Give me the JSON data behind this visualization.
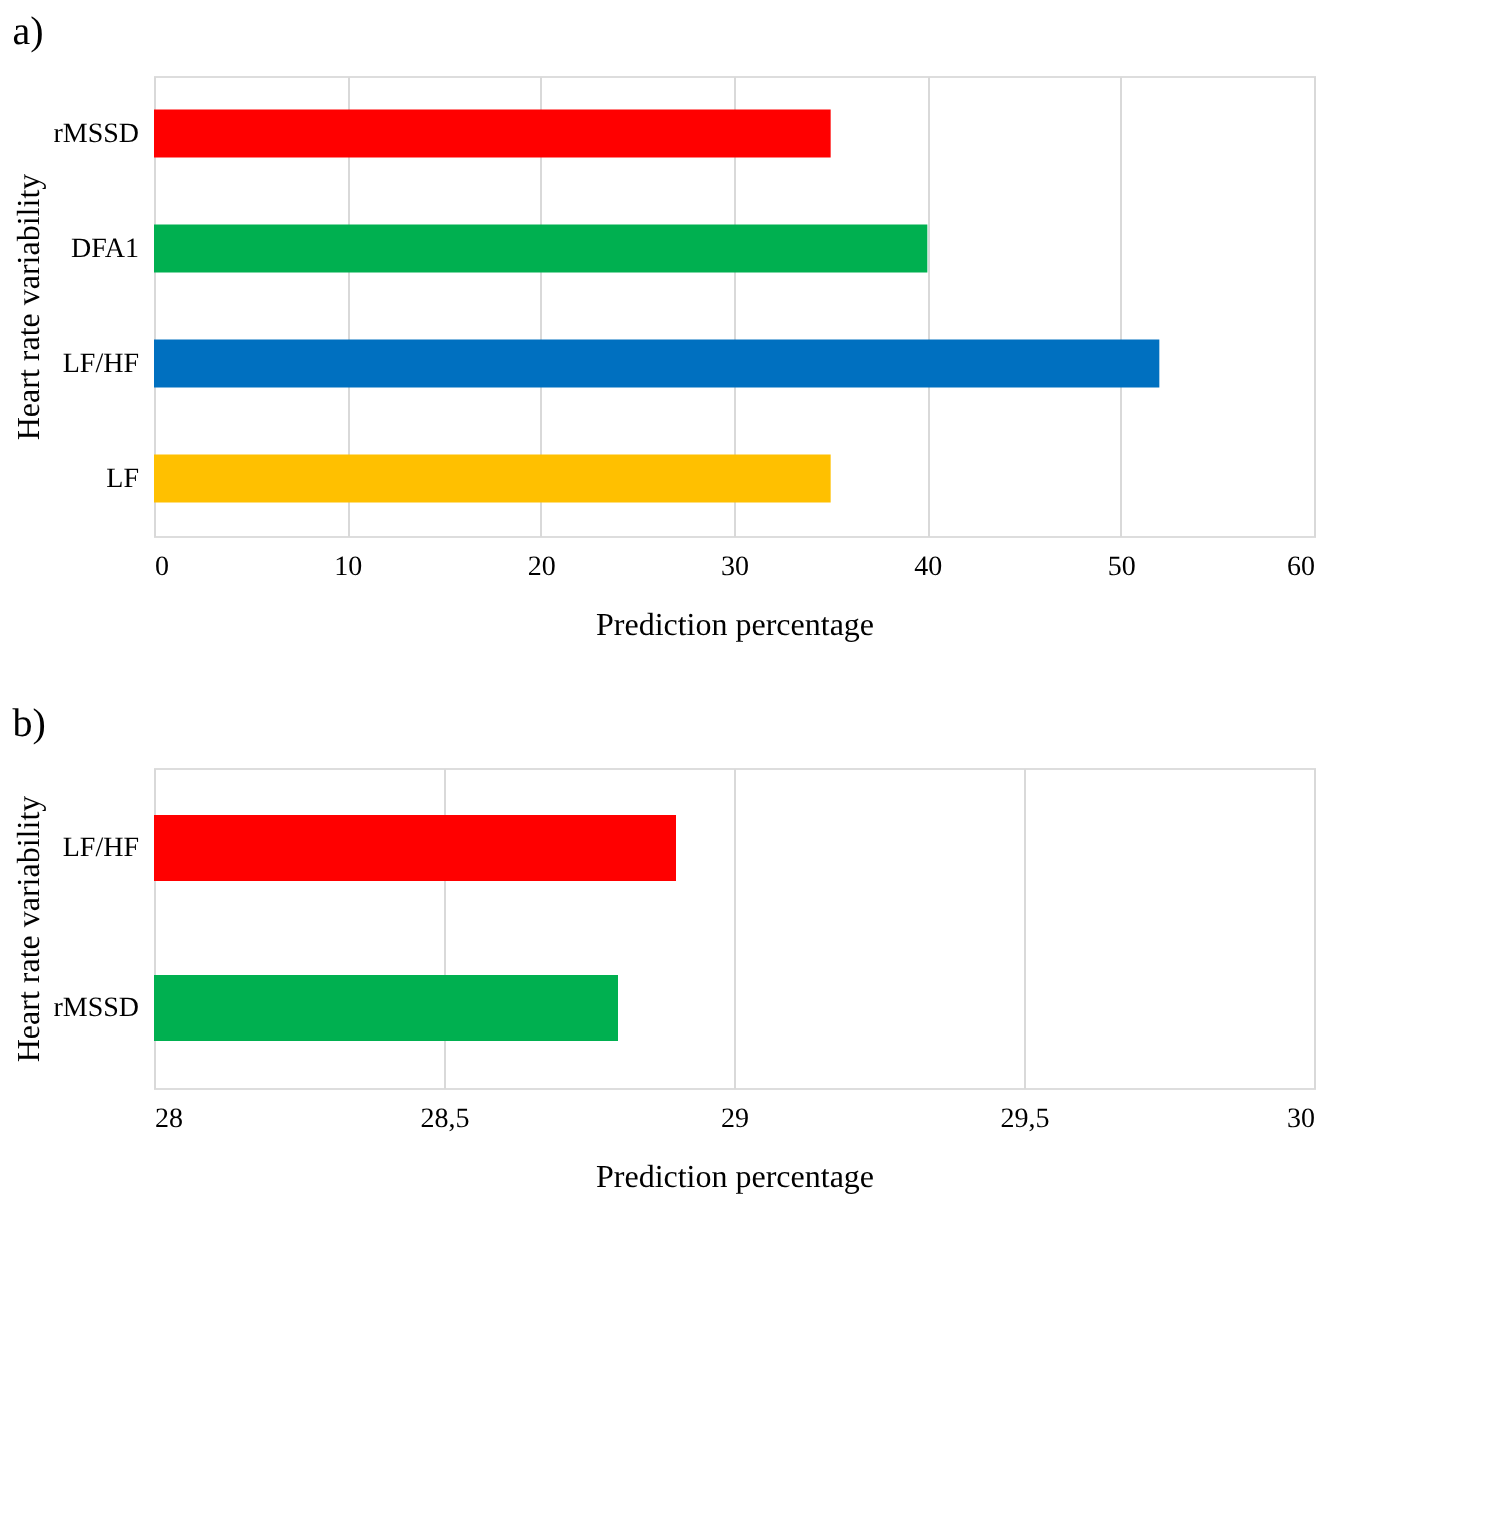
{
  "chart_data": [
    {
      "type": "bar",
      "orientation": "horizontal",
      "title": "a)",
      "xlabel": "Prediction percentage",
      "ylabel": "Heart rate variability",
      "categories": [
        "rMSSD",
        "DFA1",
        "LF/HF",
        "LF"
      ],
      "values": [
        35,
        40,
        52,
        35
      ],
      "colors": [
        "#ff0000",
        "#00b050",
        "#0070c0",
        "#ffc000"
      ],
      "xlim": [
        0,
        60
      ],
      "xticks": [
        0,
        10,
        20,
        30,
        40,
        50,
        60
      ],
      "grid": "x",
      "legend": false
    },
    {
      "type": "bar",
      "orientation": "horizontal",
      "title": "b)",
      "xlabel": "Prediction percentage",
      "ylabel": "Heart rate variability",
      "categories": [
        "LF/HF",
        "rMSSD"
      ],
      "values": [
        28.9,
        28.8
      ],
      "colors": [
        "#ff0000",
        "#00b050"
      ],
      "xlim": [
        28,
        30
      ],
      "xticks": [
        28,
        {
          "value": 28.5,
          "label": "28,5"
        },
        29,
        {
          "value": 29.5,
          "label": "29,5"
        },
        30
      ],
      "grid": "x",
      "legend": false
    }
  ]
}
